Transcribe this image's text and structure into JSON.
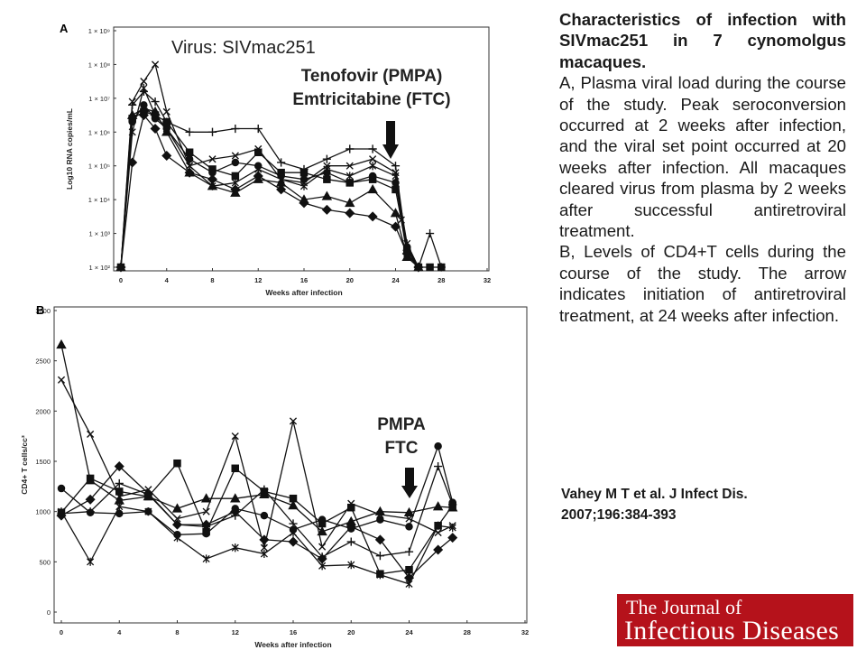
{
  "panels": {
    "a_letter": "A",
    "b_letter": "B",
    "a_virus_label": "Virus: SIVmac251",
    "a_drug_line1": "Tenofovir (PMPA)",
    "a_drug_line2": "Emtricitabine (FTC)",
    "b_drug_line1": "PMPA",
    "b_drug_line2": "FTC"
  },
  "caption": {
    "title": "Characteristics of infection with SIVmac251 in 7 cynomolgus macaques.",
    "part_a": "A, Plasma viral load during the course of the study. Peak seroconversion occurred at 2 weeks after infection, and the viral set point occurred at 20 weeks after infection. All macaques cleared virus from plasma by 2 weeks after successful antiretroviral treatment.",
    "part_b": "B, Levels of CD4+T cells during the course of the study. The arrow indicates initiation of antiretroviral treatment, at 24 weeks after infection."
  },
  "citation": {
    "line1": "Vahey M T et al. J Infect Dis.",
    "line2": "2007;196:384-393"
  },
  "logo": {
    "line1": "The Journal of",
    "line2": "Infectious Diseases"
  },
  "colors": {
    "logo_bg": "#b5121b",
    "ink": "#111111"
  },
  "chart_data": [
    {
      "type": "line",
      "panel": "A",
      "xlabel": "Weeks after infection",
      "ylabel": "Log10 RNA copies/mL",
      "xlim": [
        0,
        32
      ],
      "ylim": [
        2,
        9
      ],
      "y_log_scale": true,
      "x_ticks": [
        "0",
        "4",
        "8",
        "12",
        "16",
        "20",
        "24",
        "28",
        "32"
      ],
      "y_ticks": [
        "1 × 10²",
        "1 × 10³",
        "1 × 10⁴",
        "1 × 10⁵",
        "1 × 10⁶",
        "1 × 10⁷",
        "1 × 10⁸",
        "1 × 10⁹"
      ],
      "treatment_arrow_week": 24,
      "series": [
        {
          "marker": "square",
          "points": [
            [
              0,
              2
            ],
            [
              1,
              6.4
            ],
            [
              2,
              6.6
            ],
            [
              3,
              6.5
            ],
            [
              4,
              6.3
            ],
            [
              6,
              5.4
            ],
            [
              8,
              4.9
            ],
            [
              10,
              4.7
            ],
            [
              12,
              5.4
            ],
            [
              14,
              4.8
            ],
            [
              16,
              4.8
            ],
            [
              18,
              4.6
            ],
            [
              20,
              4.5
            ],
            [
              22,
              4.6
            ],
            [
              24,
              4.3
            ],
            [
              25,
              2.5
            ],
            [
              26,
              2
            ],
            [
              27,
              2
            ],
            [
              28,
              2
            ]
          ]
        },
        {
          "marker": "diamond",
          "points": [
            [
              0,
              2
            ],
            [
              1,
              5.1
            ],
            [
              2,
              6.5
            ],
            [
              3,
              6.1
            ],
            [
              4,
              5.3
            ],
            [
              6,
              4.8
            ],
            [
              8,
              4.6
            ],
            [
              10,
              4.3
            ],
            [
              12,
              4.7
            ],
            [
              14,
              4.3
            ],
            [
              16,
              3.9
            ],
            [
              18,
              3.7
            ],
            [
              20,
              3.6
            ],
            [
              22,
              3.5
            ],
            [
              24,
              3.2
            ],
            [
              25,
              2.4
            ],
            [
              26,
              2
            ]
          ]
        },
        {
          "marker": "triangle",
          "points": [
            [
              0,
              2
            ],
            [
              1,
              6.5
            ],
            [
              2,
              6.7
            ],
            [
              3,
              6.6
            ],
            [
              4,
              6.0
            ],
            [
              6,
              4.8
            ],
            [
              8,
              4.4
            ],
            [
              10,
              4.2
            ],
            [
              12,
              4.6
            ],
            [
              14,
              4.5
            ],
            [
              16,
              4.0
            ],
            [
              18,
              4.1
            ],
            [
              20,
              3.9
            ],
            [
              22,
              4.3
            ],
            [
              24,
              3.6
            ],
            [
              25,
              2.3
            ],
            [
              26,
              2
            ]
          ]
        },
        {
          "marker": "circle",
          "points": [
            [
              0,
              2
            ],
            [
              1,
              6.3
            ],
            [
              2,
              6.8
            ],
            [
              3,
              6.4
            ],
            [
              4,
              6.1
            ],
            [
              6,
              5.2
            ],
            [
              8,
              4.8
            ],
            [
              10,
              5.1
            ],
            [
              12,
              5.0
            ],
            [
              14,
              4.7
            ],
            [
              16,
              4.6
            ],
            [
              18,
              4.8
            ],
            [
              20,
              4.5
            ],
            [
              22,
              4.7
            ],
            [
              24,
              4.5
            ],
            [
              25,
              2.6
            ],
            [
              26,
              2
            ]
          ]
        },
        {
          "marker": "plus",
          "points": [
            [
              0,
              2
            ],
            [
              1,
              6.8
            ],
            [
              2,
              7.2
            ],
            [
              3,
              6.9
            ],
            [
              4,
              6.3
            ],
            [
              6,
              6.0
            ],
            [
              8,
              6.0
            ],
            [
              10,
              6.1
            ],
            [
              12,
              6.1
            ],
            [
              14,
              5.1
            ],
            [
              16,
              4.9
            ],
            [
              18,
              5.2
            ],
            [
              20,
              5.5
            ],
            [
              22,
              5.5
            ],
            [
              24,
              5.0
            ],
            [
              25,
              2.5
            ],
            [
              26,
              2
            ],
            [
              27,
              3.0
            ],
            [
              28,
              2
            ]
          ]
        },
        {
          "marker": "x",
          "points": [
            [
              0,
              2
            ],
            [
              1,
              6.9
            ],
            [
              2,
              7.5
            ],
            [
              3,
              8.0
            ],
            [
              4,
              6.6
            ],
            [
              6,
              5.0
            ],
            [
              8,
              5.2
            ],
            [
              10,
              5.3
            ],
            [
              12,
              5.5
            ],
            [
              14,
              4.6
            ],
            [
              16,
              4.5
            ],
            [
              18,
              5.0
            ],
            [
              20,
              5.0
            ],
            [
              22,
              5.2
            ],
            [
              24,
              4.8
            ],
            [
              24.5,
              3.4
            ],
            [
              25,
              2.4
            ],
            [
              26,
              2
            ]
          ]
        },
        {
          "marker": "star",
          "points": [
            [
              0,
              2
            ],
            [
              1,
              6.0
            ],
            [
              2,
              7.3
            ],
            [
              3,
              6.5
            ],
            [
              4,
              6.1
            ],
            [
              6,
              5.0
            ],
            [
              8,
              4.4
            ],
            [
              10,
              4.5
            ],
            [
              12,
              4.9
            ],
            [
              14,
              4.6
            ],
            [
              16,
              4.4
            ],
            [
              18,
              4.9
            ],
            [
              20,
              4.7
            ],
            [
              22,
              5.0
            ],
            [
              24,
              4.7
            ],
            [
              25,
              2.7
            ],
            [
              26,
              2
            ]
          ]
        }
      ]
    },
    {
      "type": "line",
      "panel": "B",
      "xlabel": "Weeks after infection",
      "ylabel": "CD4+ T cells/cc³",
      "xlim": [
        0,
        32
      ],
      "ylim": [
        0,
        3000
      ],
      "x_ticks": [
        "0",
        "4",
        "8",
        "12",
        "16",
        "20",
        "24",
        "28",
        "32"
      ],
      "y_ticks": [
        "0",
        "500",
        "1000",
        "1500",
        "2000",
        "2500",
        "3000"
      ],
      "treatment_arrow_week": 24,
      "series": [
        {
          "marker": "triangle",
          "points": [
            [
              0,
              2660
            ],
            [
              2,
              1310
            ],
            [
              4,
              1110
            ],
            [
              6,
              1150
            ],
            [
              8,
              1030
            ],
            [
              10,
              1130
            ],
            [
              12,
              1130
            ],
            [
              14,
              1170
            ],
            [
              16,
              1060
            ],
            [
              18,
              800
            ],
            [
              20,
              900
            ],
            [
              22,
              1000
            ],
            [
              24,
              990
            ],
            [
              26,
              1050
            ],
            [
              27,
              1040
            ]
          ]
        },
        {
          "marker": "x",
          "points": [
            [
              0,
              2310
            ],
            [
              2,
              1770
            ],
            [
              4,
              1150
            ],
            [
              6,
              1220
            ],
            [
              8,
              930
            ],
            [
              10,
              1000
            ],
            [
              12,
              1750
            ],
            [
              14,
              640
            ],
            [
              16,
              1900
            ],
            [
              18,
              650
            ],
            [
              20,
              1080
            ],
            [
              22,
              970
            ],
            [
              24,
              930
            ],
            [
              26,
              790
            ],
            [
              27,
              860
            ]
          ]
        },
        {
          "marker": "square",
          "points": [
            [
              0,
              990
            ],
            [
              2,
              1330
            ],
            [
              4,
              1200
            ],
            [
              6,
              1150
            ],
            [
              8,
              1480
            ],
            [
              10,
              800
            ],
            [
              12,
              1430
            ],
            [
              14,
              1200
            ],
            [
              16,
              1130
            ],
            [
              18,
              880
            ],
            [
              20,
              1040
            ],
            [
              22,
              380
            ],
            [
              24,
              420
            ],
            [
              26,
              860
            ],
            [
              27,
              1060
            ]
          ]
        },
        {
          "marker": "diamond",
          "points": [
            [
              0,
              960
            ],
            [
              2,
              1120
            ],
            [
              4,
              1450
            ],
            [
              6,
              1180
            ],
            [
              8,
              870
            ],
            [
              10,
              870
            ],
            [
              12,
              1000
            ],
            [
              14,
              720
            ],
            [
              16,
              700
            ],
            [
              18,
              530
            ],
            [
              20,
              850
            ],
            [
              22,
              720
            ],
            [
              24,
              340
            ],
            [
              26,
              620
            ],
            [
              27,
              740
            ]
          ]
        },
        {
          "marker": "circle",
          "points": [
            [
              0,
              1230
            ],
            [
              2,
              990
            ],
            [
              4,
              980
            ],
            [
              6,
              1000
            ],
            [
              8,
              770
            ],
            [
              10,
              780
            ],
            [
              12,
              1030
            ],
            [
              14,
              960
            ],
            [
              16,
              820
            ],
            [
              18,
              920
            ],
            [
              20,
              830
            ],
            [
              22,
              920
            ],
            [
              24,
              850
            ],
            [
              26,
              1650
            ],
            [
              27,
              1090
            ]
          ]
        },
        {
          "marker": "plus",
          "points": [
            [
              0,
              980
            ],
            [
              2,
              1000
            ],
            [
              4,
              1280
            ],
            [
              6,
              1170
            ],
            [
              8,
              870
            ],
            [
              10,
              850
            ],
            [
              12,
              960
            ],
            [
              14,
              1220
            ],
            [
              16,
              880
            ],
            [
              18,
              550
            ],
            [
              20,
              700
            ],
            [
              22,
              560
            ],
            [
              24,
              600
            ],
            [
              26,
              1450
            ],
            [
              27,
              1070
            ]
          ]
        },
        {
          "marker": "star",
          "points": [
            [
              0,
              1000
            ],
            [
              2,
              500
            ],
            [
              4,
              1050
            ],
            [
              6,
              1000
            ],
            [
              8,
              740
            ],
            [
              10,
              530
            ],
            [
              12,
              640
            ],
            [
              14,
              580
            ],
            [
              16,
              790
            ],
            [
              18,
              460
            ],
            [
              20,
              470
            ],
            [
              22,
              370
            ],
            [
              24,
              280
            ],
            [
              26,
              860
            ],
            [
              27,
              840
            ]
          ]
        }
      ]
    }
  ]
}
